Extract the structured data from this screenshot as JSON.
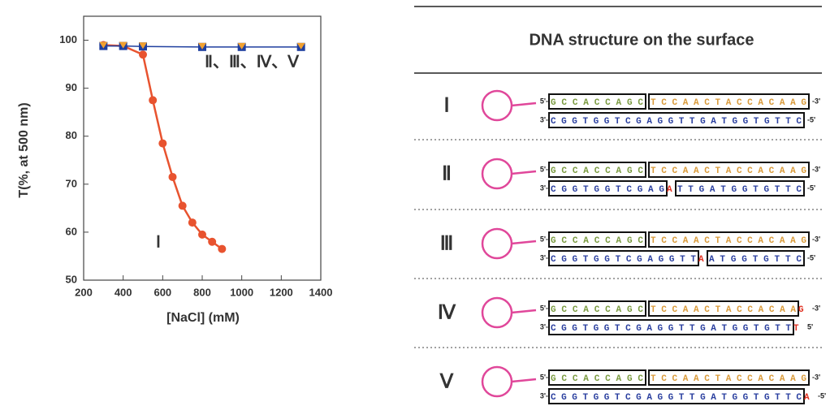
{
  "chart_data": {
    "type": "line",
    "x_label": "[NaCl]  (mM)",
    "y_label": "T(%, at 500 nm)",
    "xlim": [
      200,
      1400
    ],
    "xticks": [
      200,
      400,
      600,
      800,
      1000,
      1200,
      1400
    ],
    "ylim": [
      50,
      105
    ],
    "yticks": [
      50,
      60,
      70,
      80,
      90,
      100
    ],
    "series": [
      {
        "name": "Ⅰ",
        "color": "#e8532f",
        "marker": "circle",
        "x": [
          300,
          400,
          500,
          550,
          600,
          650,
          700,
          750,
          800,
          850,
          900
        ],
        "values": [
          99,
          98.8,
          97,
          87.5,
          78.5,
          71.5,
          65.5,
          62,
          59.5,
          58,
          56.5
        ]
      },
      {
        "name": "Ⅱ、Ⅲ、Ⅳ、Ⅴ",
        "color": "#1f3f9f",
        "marker": "square",
        "marker_color": "#f0a030",
        "x": [
          300,
          400,
          500,
          800,
          1000,
          1300
        ],
        "values": [
          98.8,
          98.8,
          98.7,
          98.6,
          98.6,
          98.6
        ]
      }
    ]
  },
  "diagram": {
    "title": "DNA structure on the surface",
    "rows": [
      {
        "label": "Ⅰ",
        "top": [
          "5'-",
          "GCCACCAGC",
          "TCCAACTACCACAAG",
          "-3'"
        ],
        "bottom": [
          "3'-",
          "CGGTGGTCGAGGTTGATGGTGTTC",
          "-5'"
        ]
      },
      {
        "label": "Ⅱ",
        "top": [
          "5'-",
          "GCCACCAGC",
          "TCCAACTACCACAAG",
          "-3'"
        ],
        "bottom": [
          "3'-",
          "CGGTGGTCGAG",
          "A",
          "TTGATGGTGTTC",
          "-5'"
        ]
      },
      {
        "label": "Ⅲ",
        "top": [
          "5'-",
          "GCCACCAGC",
          "TCCAACTACCACAAG",
          "-3'"
        ],
        "bottom": [
          "3'-",
          "CGGTGGTCGAGGTT",
          "A",
          "ATGGTGTTC",
          "-5'"
        ]
      },
      {
        "label": "Ⅳ",
        "top": [
          "5'-",
          "GCCACCAGC",
          "TCCAACTACCACAA",
          "G",
          "-3'"
        ],
        "bottom": [
          "3'-",
          "CGGTGGTCGAGGTTGATGGTGTT",
          "T",
          "5'"
        ]
      },
      {
        "label": "Ⅴ",
        "top": [
          "5'-",
          "GCCACCAGC",
          "TCCAACTACCACAAG",
          "-3'"
        ],
        "bottom": [
          "3'-",
          "CGGTGGTCGAGGTTGATGGTGTTC",
          "A",
          "-5'"
        ]
      }
    ]
  }
}
